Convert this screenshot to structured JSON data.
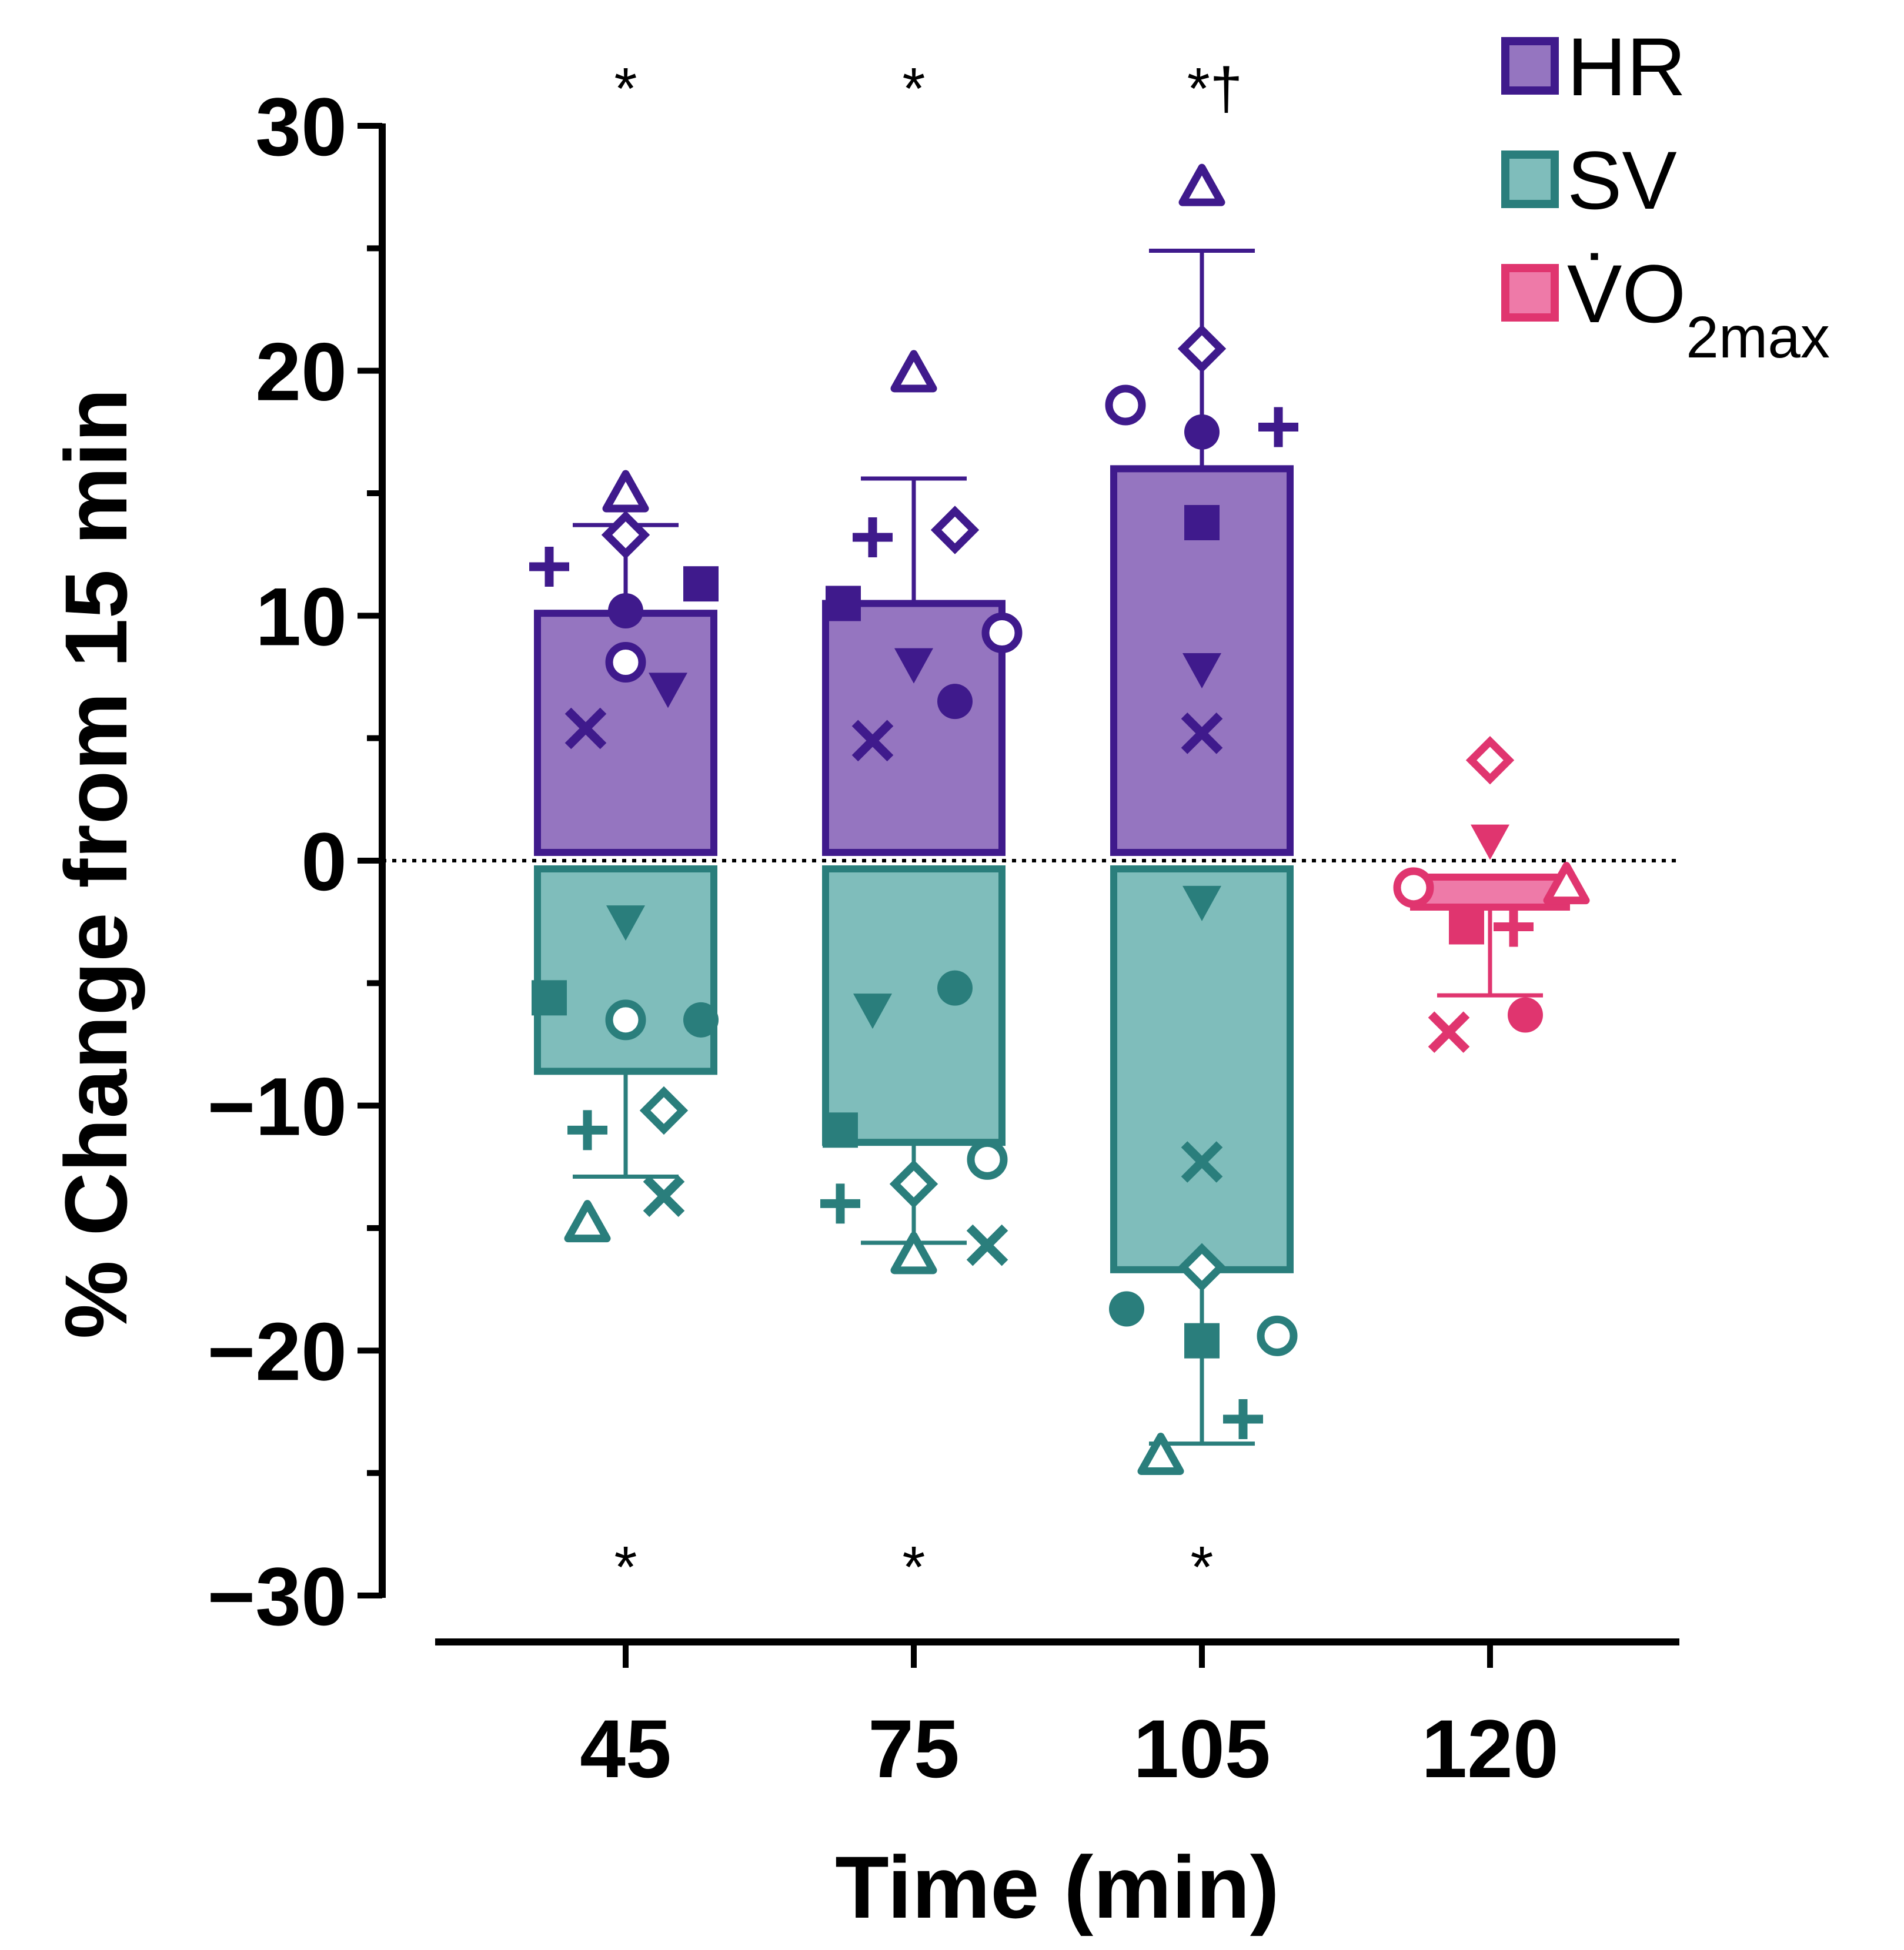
{
  "chart_data": {
    "type": "bar",
    "title": "",
    "xlabel": "Time (min)",
    "ylabel": "% Change from 15 min",
    "ylim": [
      -30,
      30
    ],
    "yticks": [
      "30",
      "20",
      "10",
      "0",
      "−10",
      "−20",
      "−30"
    ],
    "categories": [
      "45",
      "75",
      "105",
      "120"
    ],
    "legend": {
      "position": "top-right",
      "entries": [
        {
          "key": "HR",
          "label": "HR"
        },
        {
          "key": "SV",
          "label": "SV"
        },
        {
          "key": "VO2max",
          "label": "V̇O",
          "subscript": "2max"
        }
      ]
    },
    "colors": {
      "HR": {
        "fill": "#9575c0",
        "stroke": "#3f1a8c"
      },
      "SV": {
        "fill": "#7fbdbb",
        "stroke": "#2a7e7c"
      },
      "VO2max": {
        "fill": "#ee7aa8",
        "stroke": "#e0356f"
      }
    },
    "series": [
      {
        "name": "HR",
        "bars": [
          {
            "category": "45",
            "mean": 10.1,
            "sd": 3.6,
            "points": [
              {
                "marker": "plus",
                "value": 12.0
              },
              {
                "marker": "triangle-open",
                "value": 15.0
              },
              {
                "marker": "diamond-open",
                "value": 13.3
              },
              {
                "marker": "circle-filled",
                "value": 10.2
              },
              {
                "marker": "circle-open",
                "value": 8.1
              },
              {
                "marker": "square-filled",
                "value": 11.3
              },
              {
                "marker": "triangle-down-filled",
                "value": 7.0
              },
              {
                "marker": "cross",
                "value": 5.4
              }
            ]
          },
          {
            "category": "75",
            "mean": 10.5,
            "sd": 5.1,
            "points": [
              {
                "marker": "plus",
                "value": 13.2
              },
              {
                "marker": "triangle-open",
                "value": 19.9
              },
              {
                "marker": "diamond-open",
                "value": 13.5
              },
              {
                "marker": "square-filled",
                "value": 10.5
              },
              {
                "marker": "triangle-down-filled",
                "value": 8.0
              },
              {
                "marker": "circle-filled",
                "value": 6.5
              },
              {
                "marker": "circle-open",
                "value": 9.3
              },
              {
                "marker": "cross",
                "value": 4.9
              }
            ]
          },
          {
            "category": "105",
            "mean": 16.0,
            "sd": 8.9,
            "points": [
              {
                "marker": "triangle-open",
                "value": 27.5
              },
              {
                "marker": "diamond-open",
                "value": 20.9
              },
              {
                "marker": "circle-open",
                "value": 18.6
              },
              {
                "marker": "circle-filled",
                "value": 17.5
              },
              {
                "marker": "plus",
                "value": 17.7
              },
              {
                "marker": "square-filled",
                "value": 13.8
              },
              {
                "marker": "triangle-down-filled",
                "value": 7.8
              },
              {
                "marker": "cross",
                "value": 5.2
              }
            ]
          }
        ]
      },
      {
        "name": "SV",
        "bars": [
          {
            "category": "45",
            "mean": -8.6,
            "sd": 4.3,
            "points": [
              {
                "marker": "triangle-down-filled",
                "value": -2.5
              },
              {
                "marker": "square-filled",
                "value": -5.6
              },
              {
                "marker": "circle-open",
                "value": -6.5
              },
              {
                "marker": "circle-filled",
                "value": -6.5
              },
              {
                "marker": "diamond-open",
                "value": -10.2
              },
              {
                "marker": "plus",
                "value": -11.0
              },
              {
                "marker": "cross",
                "value": -13.7
              },
              {
                "marker": "triangle-open",
                "value": -14.8
              }
            ]
          },
          {
            "category": "75",
            "mean": -11.5,
            "sd": 4.1,
            "points": [
              {
                "marker": "circle-filled",
                "value": -5.2
              },
              {
                "marker": "triangle-down-filled",
                "value": -6.1
              },
              {
                "marker": "square-filled",
                "value": -11.0
              },
              {
                "marker": "circle-open",
                "value": -12.2
              },
              {
                "marker": "diamond-open",
                "value": -13.2
              },
              {
                "marker": "plus",
                "value": -14.0
              },
              {
                "marker": "cross",
                "value": -15.7
              },
              {
                "marker": "triangle-open",
                "value": -16.1
              }
            ]
          },
          {
            "category": "105",
            "mean": -16.7,
            "sd": 7.1,
            "points": [
              {
                "marker": "triangle-down-filled",
                "value": -1.7
              },
              {
                "marker": "cross",
                "value": -12.3
              },
              {
                "marker": "diamond-open",
                "value": -16.6
              },
              {
                "marker": "circle-filled",
                "value": -18.3
              },
              {
                "marker": "square-filled",
                "value": -19.6
              },
              {
                "marker": "circle-open",
                "value": -19.4
              },
              {
                "marker": "plus",
                "value": -22.8
              },
              {
                "marker": "triangle-open",
                "value": -24.3
              }
            ]
          }
        ]
      },
      {
        "name": "VO2max",
        "bars": [
          {
            "category": "120",
            "mean": -1.8,
            "sd": 3.7,
            "points": [
              {
                "marker": "diamond-open",
                "value": 4.1
              },
              {
                "marker": "triangle-down-filled",
                "value": 0.8
              },
              {
                "marker": "circle-open",
                "value": -1.1
              },
              {
                "marker": "triangle-open",
                "value": -1.0
              },
              {
                "marker": "square-filled",
                "value": -2.7
              },
              {
                "marker": "plus",
                "value": -2.7
              },
              {
                "marker": "circle-filled",
                "value": -6.3
              },
              {
                "marker": "cross",
                "value": -7.0
              }
            ]
          }
        ]
      }
    ],
    "significance": {
      "top": [
        "*",
        "*",
        "*†"
      ],
      "bottom": [
        "*",
        "*",
        "*"
      ]
    }
  }
}
